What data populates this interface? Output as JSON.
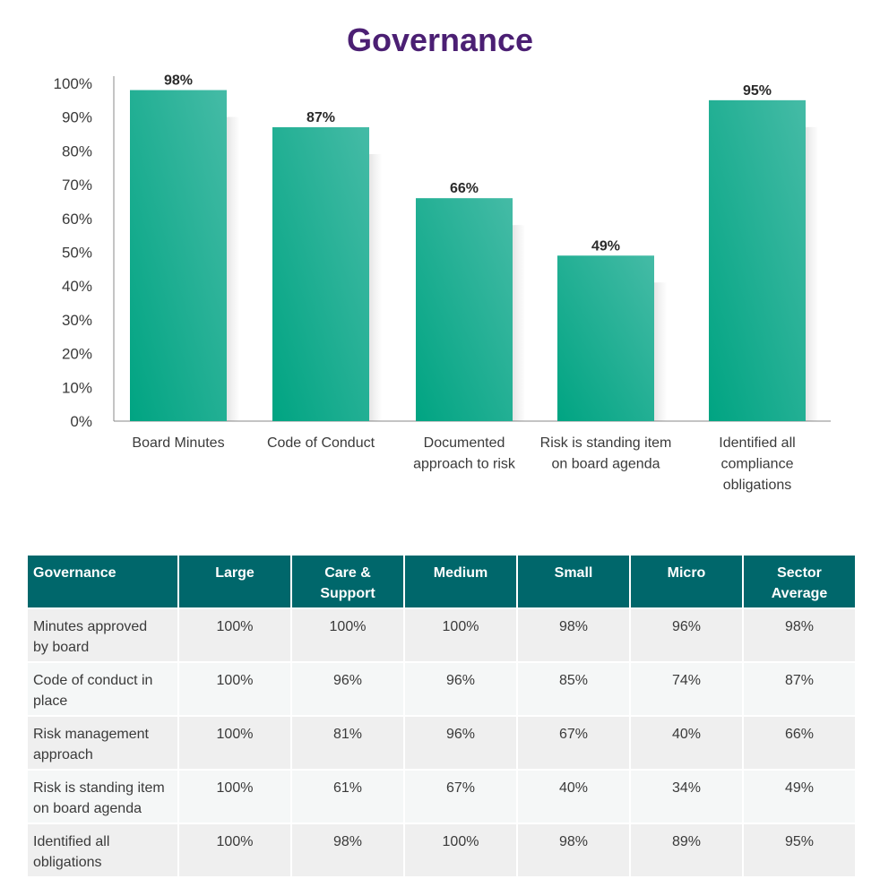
{
  "chart_data": {
    "type": "bar",
    "title": "Governance",
    "categories": [
      [
        "Board Minutes"
      ],
      [
        "Code of Conduct"
      ],
      [
        "Documented",
        "approach to risk"
      ],
      [
        "Risk is standing item",
        "on board agenda"
      ],
      [
        "Identified all",
        "compliance",
        "obligations"
      ]
    ],
    "values": [
      98,
      87,
      66,
      49,
      95
    ],
    "value_labels": [
      "98%",
      "87%",
      "66%",
      "49%",
      "95%"
    ],
    "ylim": [
      0,
      100
    ],
    "yticks": [
      "0%",
      "10%",
      "20%",
      "30%",
      "40%",
      "50%",
      "60%",
      "70%",
      "80%",
      "90%",
      "100%"
    ],
    "xlabel": "",
    "ylabel": "",
    "grid": false,
    "colors": {
      "bar_top": "#3db8a0",
      "bar_bottom": "#00a482",
      "axis": "#888888"
    }
  },
  "table": {
    "headers": [
      [
        "Governance"
      ],
      [
        "Large"
      ],
      [
        "Care &",
        "Support"
      ],
      [
        "Medium"
      ],
      [
        "Small"
      ],
      [
        "Micro"
      ],
      [
        "Sector",
        "Average"
      ]
    ],
    "rows": [
      [
        [
          "Minutes approved",
          "by board"
        ],
        "100%",
        "100%",
        "100%",
        "98%",
        "96%",
        "98%"
      ],
      [
        [
          "Code of conduct in",
          "place"
        ],
        "100%",
        "96%",
        "96%",
        "85%",
        "74%",
        "87%"
      ],
      [
        [
          "Risk management",
          "approach"
        ],
        "100%",
        "81%",
        "96%",
        "67%",
        "40%",
        "66%"
      ],
      [
        [
          "Risk is standing item",
          "on board agenda"
        ],
        "100%",
        "61%",
        "67%",
        "40%",
        "34%",
        "49%"
      ],
      [
        [
          "Identified all",
          "obligations"
        ],
        "100%",
        "98%",
        "100%",
        "98%",
        "89%",
        "95%"
      ]
    ],
    "colors": {
      "header_bg": "#00676b",
      "row_bg": "#efefef"
    }
  }
}
